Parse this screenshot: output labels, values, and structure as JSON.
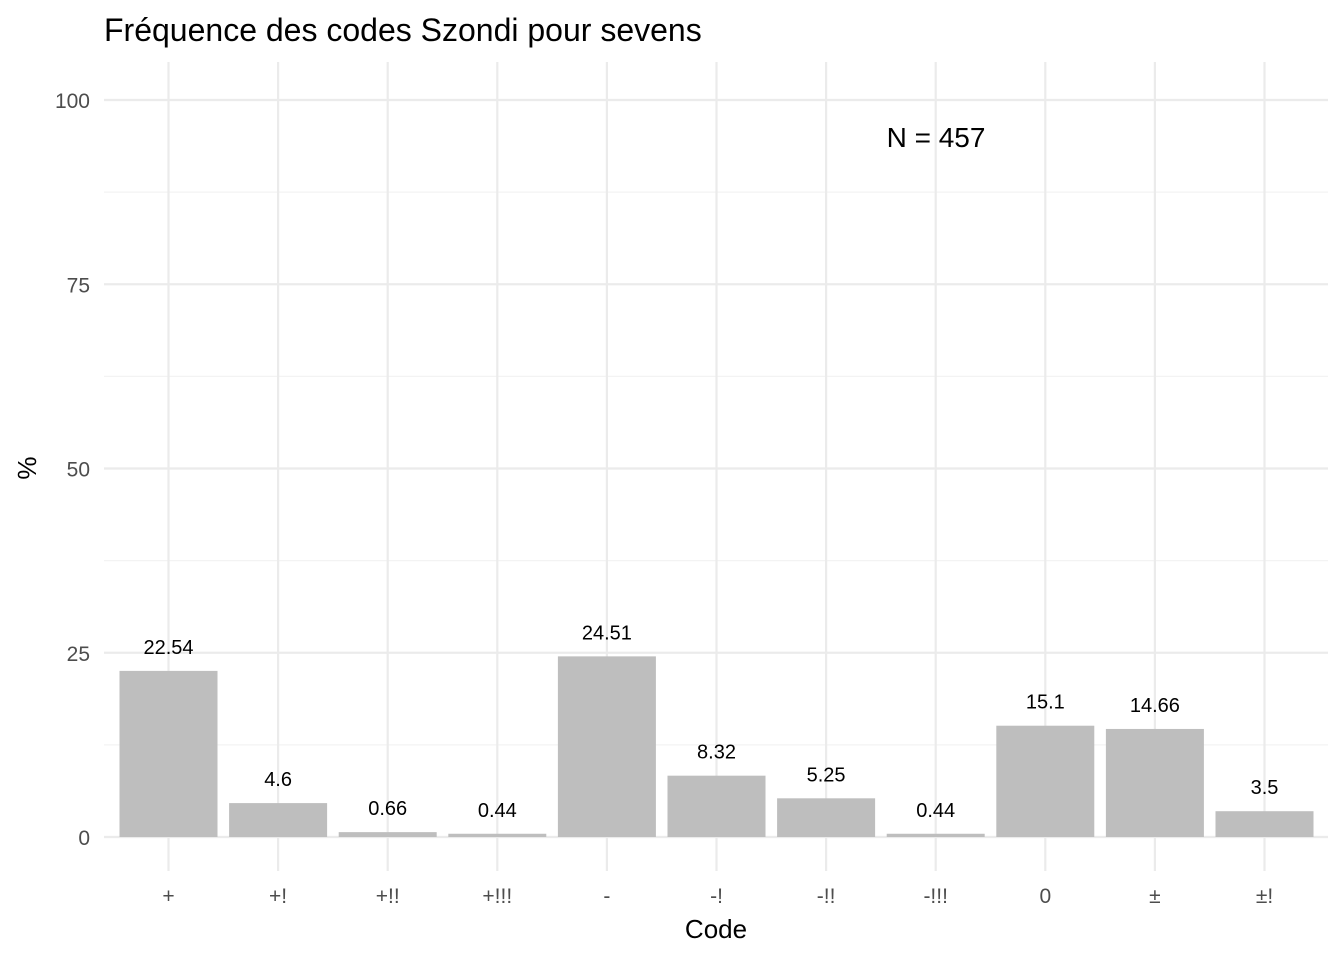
{
  "chart_data": {
    "type": "bar",
    "title": "Fréquence des codes Szondi pour sevens",
    "xlabel": "Code",
    "ylabel": "%",
    "categories": [
      "+",
      "+!",
      "+!!",
      "+!!!",
      "-",
      "-!",
      "-!!",
      "-!!!",
      "0",
      "±",
      "±!"
    ],
    "values": [
      22.54,
      4.6,
      0.66,
      0.44,
      24.51,
      8.32,
      5.25,
      0.44,
      15.1,
      14.66,
      3.5
    ],
    "value_labels": [
      "22.54",
      "4.6",
      "0.66",
      "0.44",
      "24.51",
      "8.32",
      "5.25",
      "0.44",
      "15.1",
      "14.66",
      "3.5"
    ],
    "ylim": [
      0,
      100
    ],
    "yticks": [
      0,
      25,
      50,
      75,
      100
    ],
    "ytick_labels": [
      "0",
      "25",
      "50",
      "75",
      "100"
    ],
    "annotation": "N = 457",
    "bar_color": "#bebebe",
    "grid": true,
    "legend": "none"
  }
}
